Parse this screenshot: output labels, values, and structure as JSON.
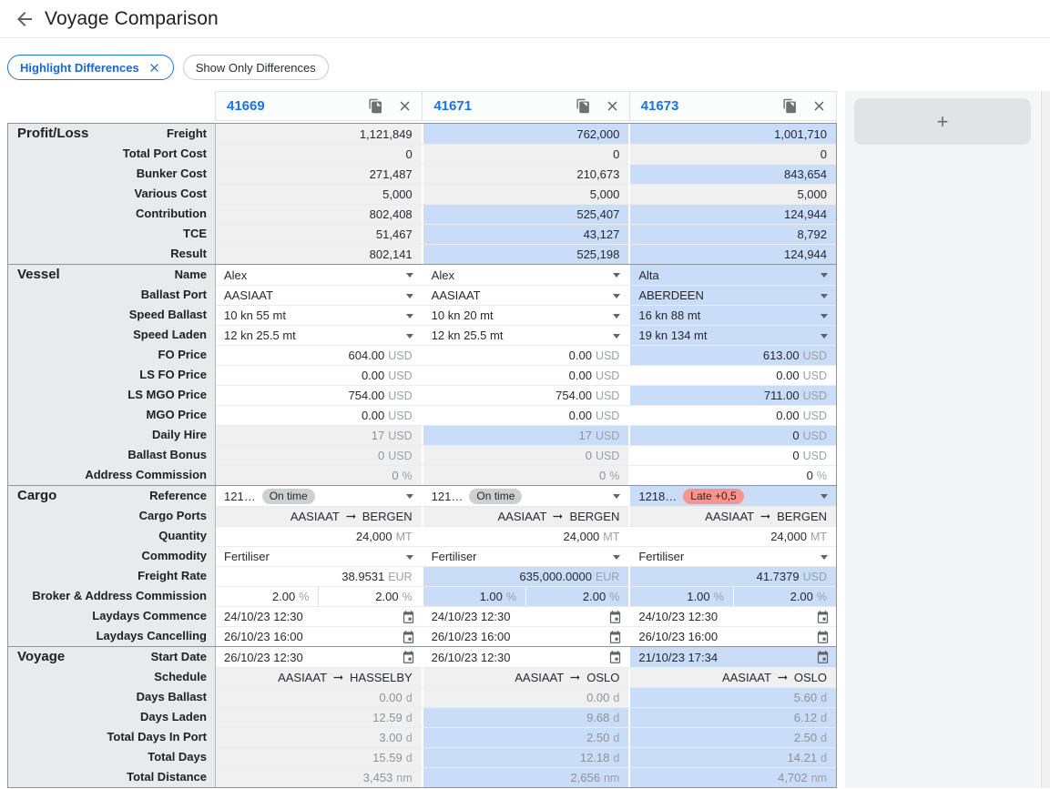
{
  "header": {
    "title": "Voyage Comparison"
  },
  "filters": {
    "highlight": {
      "label": "Highlight Differences",
      "active": true
    },
    "show_only": {
      "label": "Show Only Differences",
      "active": false
    }
  },
  "columns": [
    {
      "id": "41669"
    },
    {
      "id": "41671"
    },
    {
      "id": "41673"
    }
  ],
  "add_column": {
    "label": "+"
  },
  "colors": {
    "accent": "#1a73e8",
    "highlight_cell": "#c9dcf8",
    "readonly_cell": "#f0f0f1",
    "label_panel": "#e9eaec",
    "ontime_badge": "#cdcfd2",
    "late_badge": "#f6948d"
  },
  "sections": [
    {
      "title": "Profit/Loss",
      "rows": [
        {
          "label": "Freight",
          "cells": [
            {
              "type": "number",
              "value": "1,121,849",
              "bg": "gray"
            },
            {
              "type": "number",
              "value": "762,000",
              "bg": "blue"
            },
            {
              "type": "number",
              "value": "1,001,710",
              "bg": "blue"
            }
          ]
        },
        {
          "label": "Total Port Cost",
          "cells": [
            {
              "type": "number",
              "value": "0",
              "bg": "gray"
            },
            {
              "type": "number",
              "value": "0",
              "bg": "gray"
            },
            {
              "type": "number",
              "value": "0",
              "bg": "gray"
            }
          ]
        },
        {
          "label": "Bunker Cost",
          "cells": [
            {
              "type": "number",
              "value": "271,487",
              "bg": "gray"
            },
            {
              "type": "number",
              "value": "210,673",
              "bg": "gray"
            },
            {
              "type": "number",
              "value": "843,654",
              "bg": "blue"
            }
          ]
        },
        {
          "label": "Various Cost",
          "cells": [
            {
              "type": "number",
              "value": "5,000",
              "bg": "gray"
            },
            {
              "type": "number",
              "value": "5,000",
              "bg": "gray"
            },
            {
              "type": "number",
              "value": "5,000",
              "bg": "gray"
            }
          ]
        },
        {
          "label": "Contribution",
          "cells": [
            {
              "type": "number",
              "value": "802,408",
              "bg": "gray"
            },
            {
              "type": "number",
              "value": "525,407",
              "bg": "blue"
            },
            {
              "type": "number",
              "value": "124,944",
              "bg": "blue"
            }
          ]
        },
        {
          "label": "TCE",
          "cells": [
            {
              "type": "number",
              "value": "51,467",
              "bg": "gray"
            },
            {
              "type": "number",
              "value": "43,127",
              "bg": "blue"
            },
            {
              "type": "number",
              "value": "8,792",
              "bg": "blue"
            }
          ]
        },
        {
          "label": "Result",
          "cells": [
            {
              "type": "number",
              "value": "802,141",
              "bg": "gray"
            },
            {
              "type": "number",
              "value": "525,198",
              "bg": "blue"
            },
            {
              "type": "number",
              "value": "124,944",
              "bg": "blue"
            }
          ]
        }
      ]
    },
    {
      "title": "Vessel",
      "rows": [
        {
          "label": "Name",
          "cells": [
            {
              "type": "select",
              "value": "Alex",
              "bg": "white"
            },
            {
              "type": "select",
              "value": "Alex",
              "bg": "white"
            },
            {
              "type": "select",
              "value": "Alta",
              "bg": "blue"
            }
          ]
        },
        {
          "label": "Ballast Port",
          "cells": [
            {
              "type": "select",
              "value": "AASIAAT",
              "bg": "white"
            },
            {
              "type": "select",
              "value": "AASIAAT",
              "bg": "white"
            },
            {
              "type": "select",
              "value": "ABERDEEN",
              "bg": "blue"
            }
          ]
        },
        {
          "label": "Speed Ballast",
          "cells": [
            {
              "type": "select",
              "value": "10 kn 55 mt",
              "bg": "white"
            },
            {
              "type": "select",
              "value": "10 kn 20 mt",
              "bg": "white"
            },
            {
              "type": "select",
              "value": "16 kn 88 mt",
              "bg": "blue"
            }
          ]
        },
        {
          "label": "Speed Laden",
          "cells": [
            {
              "type": "select",
              "value": "12 kn 25.5 mt",
              "bg": "white"
            },
            {
              "type": "select",
              "value": "12 kn 25.5 mt",
              "bg": "white"
            },
            {
              "type": "select",
              "value": "19 kn 134 mt",
              "bg": "blue"
            }
          ]
        },
        {
          "label": "FO Price",
          "cells": [
            {
              "type": "unit",
              "value": "604.00",
              "unit": "USD",
              "bg": "white"
            },
            {
              "type": "unit",
              "value": "0.00",
              "unit": "USD",
              "bg": "white"
            },
            {
              "type": "unit",
              "value": "613.00",
              "unit": "USD",
              "bg": "blue"
            }
          ]
        },
        {
          "label": "LS FO Price",
          "cells": [
            {
              "type": "unit",
              "value": "0.00",
              "unit": "USD",
              "bg": "white"
            },
            {
              "type": "unit",
              "value": "0.00",
              "unit": "USD",
              "bg": "white"
            },
            {
              "type": "unit",
              "value": "0.00",
              "unit": "USD",
              "bg": "white"
            }
          ]
        },
        {
          "label": "LS MGO Price",
          "cells": [
            {
              "type": "unit",
              "value": "754.00",
              "unit": "USD",
              "bg": "white"
            },
            {
              "type": "unit",
              "value": "754.00",
              "unit": "USD",
              "bg": "white"
            },
            {
              "type": "unit",
              "value": "711.00",
              "unit": "USD",
              "bg": "blue"
            }
          ]
        },
        {
          "label": "MGO Price",
          "cells": [
            {
              "type": "unit",
              "value": "0.00",
              "unit": "USD",
              "bg": "white"
            },
            {
              "type": "unit",
              "value": "0.00",
              "unit": "USD",
              "bg": "white"
            },
            {
              "type": "unit",
              "value": "0.00",
              "unit": "USD",
              "bg": "white"
            }
          ]
        },
        {
          "label": "Daily Hire",
          "cells": [
            {
              "type": "unit",
              "value": "17",
              "unit": "USD",
              "bg": "gray",
              "muted": true
            },
            {
              "type": "unit",
              "value": "17",
              "unit": "USD",
              "bg": "blue",
              "muted": true
            },
            {
              "type": "unit",
              "value": "0",
              "unit": "USD",
              "bg": "blue"
            }
          ]
        },
        {
          "label": "Ballast Bonus",
          "cells": [
            {
              "type": "unit",
              "value": "0",
              "unit": "USD",
              "bg": "gray",
              "muted": true
            },
            {
              "type": "unit",
              "value": "0",
              "unit": "USD",
              "bg": "gray",
              "muted": true
            },
            {
              "type": "unit",
              "value": "0",
              "unit": "USD",
              "bg": "white"
            }
          ]
        },
        {
          "label": "Address Commission",
          "cells": [
            {
              "type": "unit",
              "value": "0",
              "unit": "%",
              "bg": "gray",
              "muted": true
            },
            {
              "type": "unit",
              "value": "0",
              "unit": "%",
              "bg": "gray",
              "muted": true
            },
            {
              "type": "unit",
              "value": "0",
              "unit": "%",
              "bg": "white"
            }
          ]
        }
      ]
    },
    {
      "title": "Cargo",
      "rows": [
        {
          "label": "Reference",
          "cells": [
            {
              "type": "reference",
              "value": "121…",
              "badge": "On time",
              "badge_style": "gray",
              "bg": "white"
            },
            {
              "type": "reference",
              "value": "121…",
              "badge": "On time",
              "badge_style": "gray",
              "bg": "white"
            },
            {
              "type": "reference",
              "value": "1218…",
              "badge": "Late +0,5",
              "badge_style": "red",
              "bg": "blue"
            }
          ]
        },
        {
          "label": "Cargo Ports",
          "cells": [
            {
              "type": "route",
              "from": "AASIAAT",
              "to": "BERGEN",
              "bg": "gray"
            },
            {
              "type": "route",
              "from": "AASIAAT",
              "to": "BERGEN",
              "bg": "gray"
            },
            {
              "type": "route",
              "from": "AASIAAT",
              "to": "BERGEN",
              "bg": "gray"
            }
          ]
        },
        {
          "label": "Quantity",
          "cells": [
            {
              "type": "unit",
              "value": "24,000",
              "unit": "MT",
              "bg": "white"
            },
            {
              "type": "unit",
              "value": "24,000",
              "unit": "MT",
              "bg": "white"
            },
            {
              "type": "unit",
              "value": "24,000",
              "unit": "MT",
              "bg": "white"
            }
          ]
        },
        {
          "label": "Commodity",
          "cells": [
            {
              "type": "select",
              "value": "Fertiliser",
              "bg": "white"
            },
            {
              "type": "select",
              "value": "Fertiliser",
              "bg": "white"
            },
            {
              "type": "select",
              "value": "Fertiliser",
              "bg": "white"
            }
          ]
        },
        {
          "label": "Freight Rate",
          "cells": [
            {
              "type": "unit",
              "value": "38.9531",
              "unit": "EUR",
              "bg": "white"
            },
            {
              "type": "unit",
              "value": "635,000.0000",
              "unit": "EUR",
              "bg": "blue"
            },
            {
              "type": "unit",
              "value": "41.7379",
              "unit": "USD",
              "bg": "blue"
            }
          ]
        },
        {
          "label": "Broker & Address Commission",
          "cells": [
            {
              "type": "split",
              "left": "2.00",
              "right": "2.00",
              "unit": "%",
              "bg": "white"
            },
            {
              "type": "split",
              "left": "1.00",
              "right": "2.00",
              "unit": "%",
              "bg": "blue"
            },
            {
              "type": "split",
              "left": "1.00",
              "right": "2.00",
              "unit": "%",
              "bg": "blue"
            }
          ]
        },
        {
          "label": "Laydays Commence",
          "cells": [
            {
              "type": "date",
              "value": "24/10/23 12:30",
              "bg": "white"
            },
            {
              "type": "date",
              "value": "24/10/23 12:30",
              "bg": "white"
            },
            {
              "type": "date",
              "value": "24/10/23 12:30",
              "bg": "white"
            }
          ]
        },
        {
          "label": "Laydays Cancelling",
          "cells": [
            {
              "type": "date",
              "value": "26/10/23 16:00",
              "bg": "white"
            },
            {
              "type": "date",
              "value": "26/10/23 16:00",
              "bg": "white"
            },
            {
              "type": "date",
              "value": "26/10/23 16:00",
              "bg": "white"
            }
          ]
        }
      ]
    },
    {
      "title": "Voyage",
      "rows": [
        {
          "label": "Start Date",
          "cells": [
            {
              "type": "date",
              "value": "26/10/23 12:30",
              "bg": "white"
            },
            {
              "type": "date",
              "value": "26/10/23 12:30",
              "bg": "white"
            },
            {
              "type": "date",
              "value": "21/10/23 17:34",
              "bg": "blue"
            }
          ]
        },
        {
          "label": "Schedule",
          "cells": [
            {
              "type": "route",
              "from": "AASIAAT",
              "to": "HASSELBY",
              "bg": "gray"
            },
            {
              "type": "route",
              "from": "AASIAAT",
              "to": "OSLO",
              "bg": "gray"
            },
            {
              "type": "route",
              "from": "AASIAAT",
              "to": "OSLO",
              "bg": "gray"
            }
          ]
        },
        {
          "label": "Days Ballast",
          "cells": [
            {
              "type": "unit",
              "value": "0.00",
              "unit": "d",
              "bg": "gray",
              "muted": true
            },
            {
              "type": "unit",
              "value": "0.00",
              "unit": "d",
              "bg": "gray",
              "muted": true
            },
            {
              "type": "unit",
              "value": "5.60",
              "unit": "d",
              "bg": "blue",
              "muted": true
            }
          ]
        },
        {
          "label": "Days Laden",
          "cells": [
            {
              "type": "unit",
              "value": "12.59",
              "unit": "d",
              "bg": "gray",
              "muted": true
            },
            {
              "type": "unit",
              "value": "9.68",
              "unit": "d",
              "bg": "blue",
              "muted": true
            },
            {
              "type": "unit",
              "value": "6.12",
              "unit": "d",
              "bg": "blue",
              "muted": true
            }
          ]
        },
        {
          "label": "Total Days In Port",
          "cells": [
            {
              "type": "unit",
              "value": "3.00",
              "unit": "d",
              "bg": "gray",
              "muted": true
            },
            {
              "type": "unit",
              "value": "2.50",
              "unit": "d",
              "bg": "blue",
              "muted": true
            },
            {
              "type": "unit",
              "value": "2.50",
              "unit": "d",
              "bg": "blue",
              "muted": true
            }
          ]
        },
        {
          "label": "Total Days",
          "cells": [
            {
              "type": "unit",
              "value": "15.59",
              "unit": "d",
              "bg": "gray",
              "muted": true
            },
            {
              "type": "unit",
              "value": "12.18",
              "unit": "d",
              "bg": "blue",
              "muted": true
            },
            {
              "type": "unit",
              "value": "14.21",
              "unit": "d",
              "bg": "blue",
              "muted": true
            }
          ]
        },
        {
          "label": "Total Distance",
          "cells": [
            {
              "type": "unit",
              "value": "3,453",
              "unit": "nm",
              "bg": "gray",
              "muted": true
            },
            {
              "type": "unit",
              "value": "2,656",
              "unit": "nm",
              "bg": "blue",
              "muted": true
            },
            {
              "type": "unit",
              "value": "4,702",
              "unit": "nm",
              "bg": "blue",
              "muted": true
            }
          ]
        }
      ]
    }
  ]
}
